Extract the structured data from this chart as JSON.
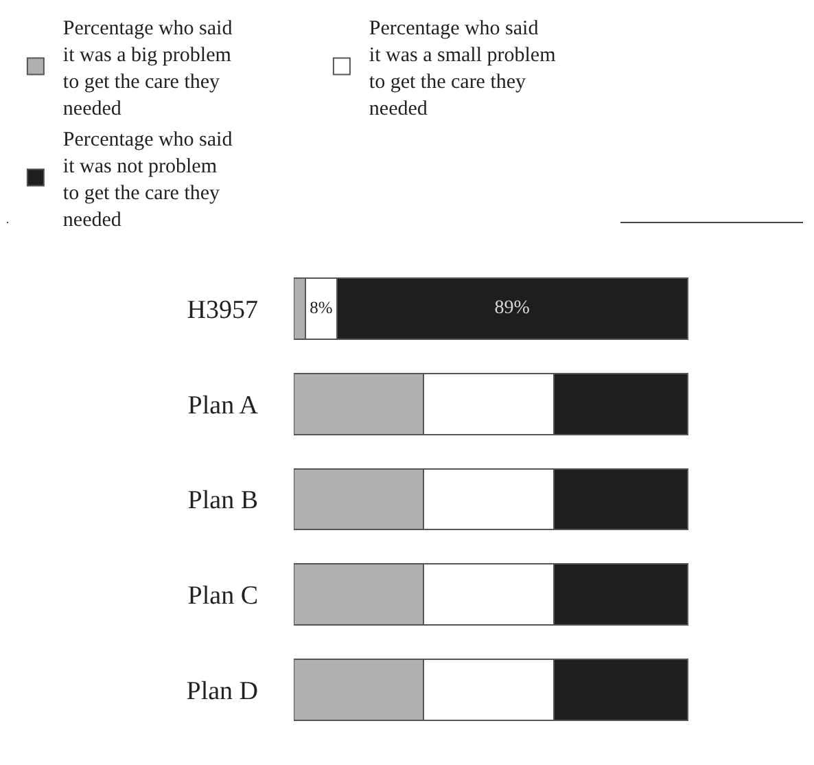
{
  "chart_data": {
    "type": "bar",
    "orientation": "horizontal",
    "stacked": true,
    "legend": "top",
    "categories": [
      "H3957",
      "Plan A",
      "Plan B",
      "Plan C",
      "Plan D"
    ],
    "series": [
      {
        "name": "Percentage who said\nit was a big problem\nto get the care they\nneeded",
        "color": "#b0b0b0",
        "values": [
          3,
          33,
          33,
          33,
          33
        ],
        "value_labels": [
          null,
          null,
          null,
          null,
          null
        ]
      },
      {
        "name": "Percentage who said\nit was a small problem\nto get the care they\nneeded",
        "color": "#ffffff",
        "values": [
          8,
          33,
          33,
          33,
          33
        ],
        "value_labels": [
          "8%",
          null,
          null,
          null,
          null
        ]
      },
      {
        "name": "Percentage who said\nit was not problem\nto get the care they\nneeded",
        "color": "#1e1e1e",
        "values": [
          89,
          34,
          34,
          34,
          34
        ],
        "value_labels": [
          "89%",
          null,
          null,
          null,
          null
        ]
      }
    ]
  }
}
